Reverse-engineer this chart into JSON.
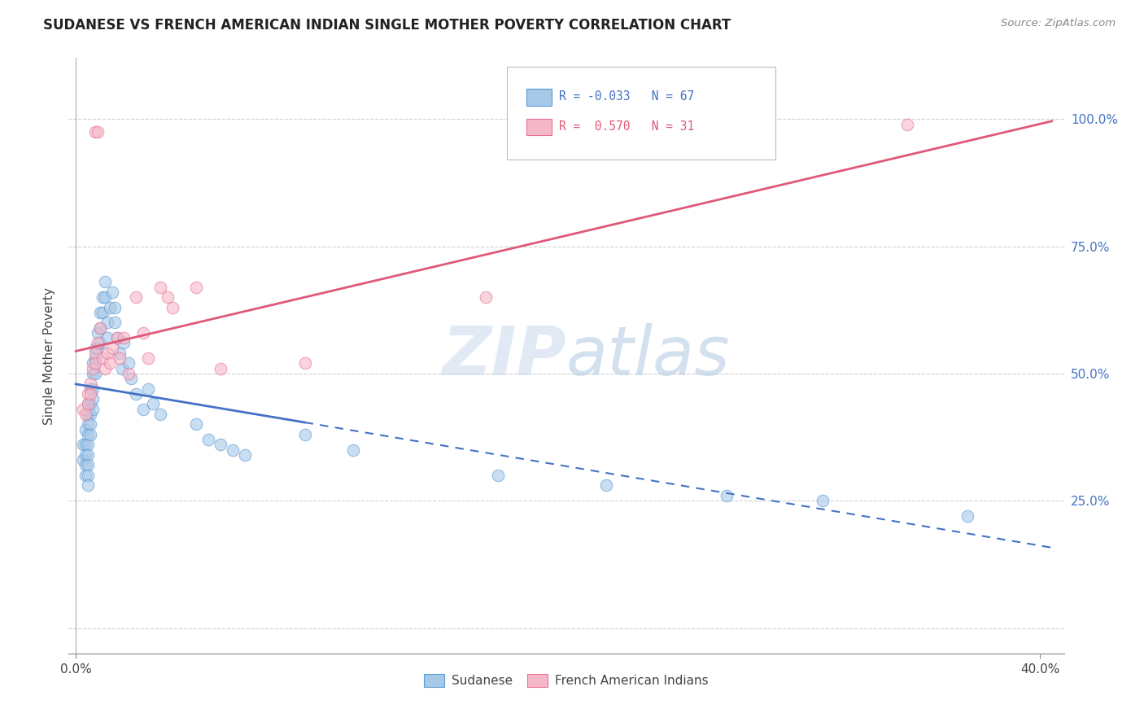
{
  "title": "SUDANESE VS FRENCH AMERICAN INDIAN SINGLE MOTHER POVERTY CORRELATION CHART",
  "source": "Source: ZipAtlas.com",
  "ylabel": "Single Mother Poverty",
  "right_ytick_vals": [
    0.25,
    0.5,
    0.75,
    1.0
  ],
  "right_ytick_labels": [
    "25.0%",
    "50.0%",
    "75.0%",
    "100.0%"
  ],
  "xlim": [
    -0.003,
    0.41
  ],
  "ylim": [
    -0.05,
    1.12
  ],
  "legend_blue_r": "-0.033",
  "legend_blue_n": "67",
  "legend_pink_r": "0.570",
  "legend_pink_n": "31",
  "blue_scatter_color": "#a8c8e8",
  "blue_edge_color": "#5b9bd5",
  "pink_scatter_color": "#f5b8c8",
  "pink_edge_color": "#e87090",
  "blue_line_color": "#4472c4",
  "pink_line_color": "#e05878",
  "watermark_color": "#ccd9ea",
  "grid_color": "#d0d0d0",
  "blue_line_solid_end": 0.095,
  "blue_line_start": 0.0,
  "blue_line_end": 0.405,
  "pink_line_start": 0.0,
  "pink_line_end": 0.405,
  "sudanese_x": [
    0.003,
    0.003,
    0.004,
    0.004,
    0.004,
    0.004,
    0.004,
    0.005,
    0.005,
    0.005,
    0.005,
    0.005,
    0.005,
    0.005,
    0.005,
    0.005,
    0.006,
    0.006,
    0.006,
    0.006,
    0.006,
    0.007,
    0.007,
    0.007,
    0.007,
    0.007,
    0.008,
    0.008,
    0.008,
    0.009,
    0.009,
    0.01,
    0.01,
    0.01,
    0.011,
    0.011,
    0.012,
    0.012,
    0.013,
    0.013,
    0.014,
    0.015,
    0.016,
    0.016,
    0.017,
    0.018,
    0.019,
    0.02,
    0.022,
    0.023,
    0.025,
    0.028,
    0.03,
    0.032,
    0.035,
    0.05,
    0.055,
    0.06,
    0.065,
    0.07,
    0.095,
    0.115,
    0.175,
    0.22,
    0.27,
    0.31,
    0.37
  ],
  "sudanese_y": [
    0.36,
    0.33,
    0.39,
    0.36,
    0.34,
    0.32,
    0.3,
    0.44,
    0.42,
    0.4,
    0.38,
    0.36,
    0.34,
    0.32,
    0.3,
    0.28,
    0.47,
    0.44,
    0.42,
    0.4,
    0.38,
    0.52,
    0.5,
    0.47,
    0.45,
    0.43,
    0.55,
    0.53,
    0.5,
    0.58,
    0.55,
    0.62,
    0.59,
    0.56,
    0.65,
    0.62,
    0.68,
    0.65,
    0.6,
    0.57,
    0.63,
    0.66,
    0.63,
    0.6,
    0.57,
    0.54,
    0.51,
    0.56,
    0.52,
    0.49,
    0.46,
    0.43,
    0.47,
    0.44,
    0.42,
    0.4,
    0.37,
    0.36,
    0.35,
    0.34,
    0.38,
    0.35,
    0.3,
    0.28,
    0.26,
    0.25,
    0.22
  ],
  "french_x": [
    0.003,
    0.004,
    0.005,
    0.005,
    0.006,
    0.006,
    0.007,
    0.008,
    0.008,
    0.009,
    0.01,
    0.011,
    0.012,
    0.013,
    0.014,
    0.015,
    0.017,
    0.018,
    0.02,
    0.022,
    0.025,
    0.028,
    0.03,
    0.035,
    0.038,
    0.04,
    0.05,
    0.06,
    0.095,
    0.17,
    0.345
  ],
  "french_y": [
    0.43,
    0.42,
    0.46,
    0.44,
    0.48,
    0.46,
    0.51,
    0.54,
    0.52,
    0.56,
    0.59,
    0.53,
    0.51,
    0.54,
    0.52,
    0.55,
    0.57,
    0.53,
    0.57,
    0.5,
    0.65,
    0.58,
    0.53,
    0.67,
    0.65,
    0.63,
    0.67,
    0.51,
    0.52,
    0.65,
    0.99
  ]
}
